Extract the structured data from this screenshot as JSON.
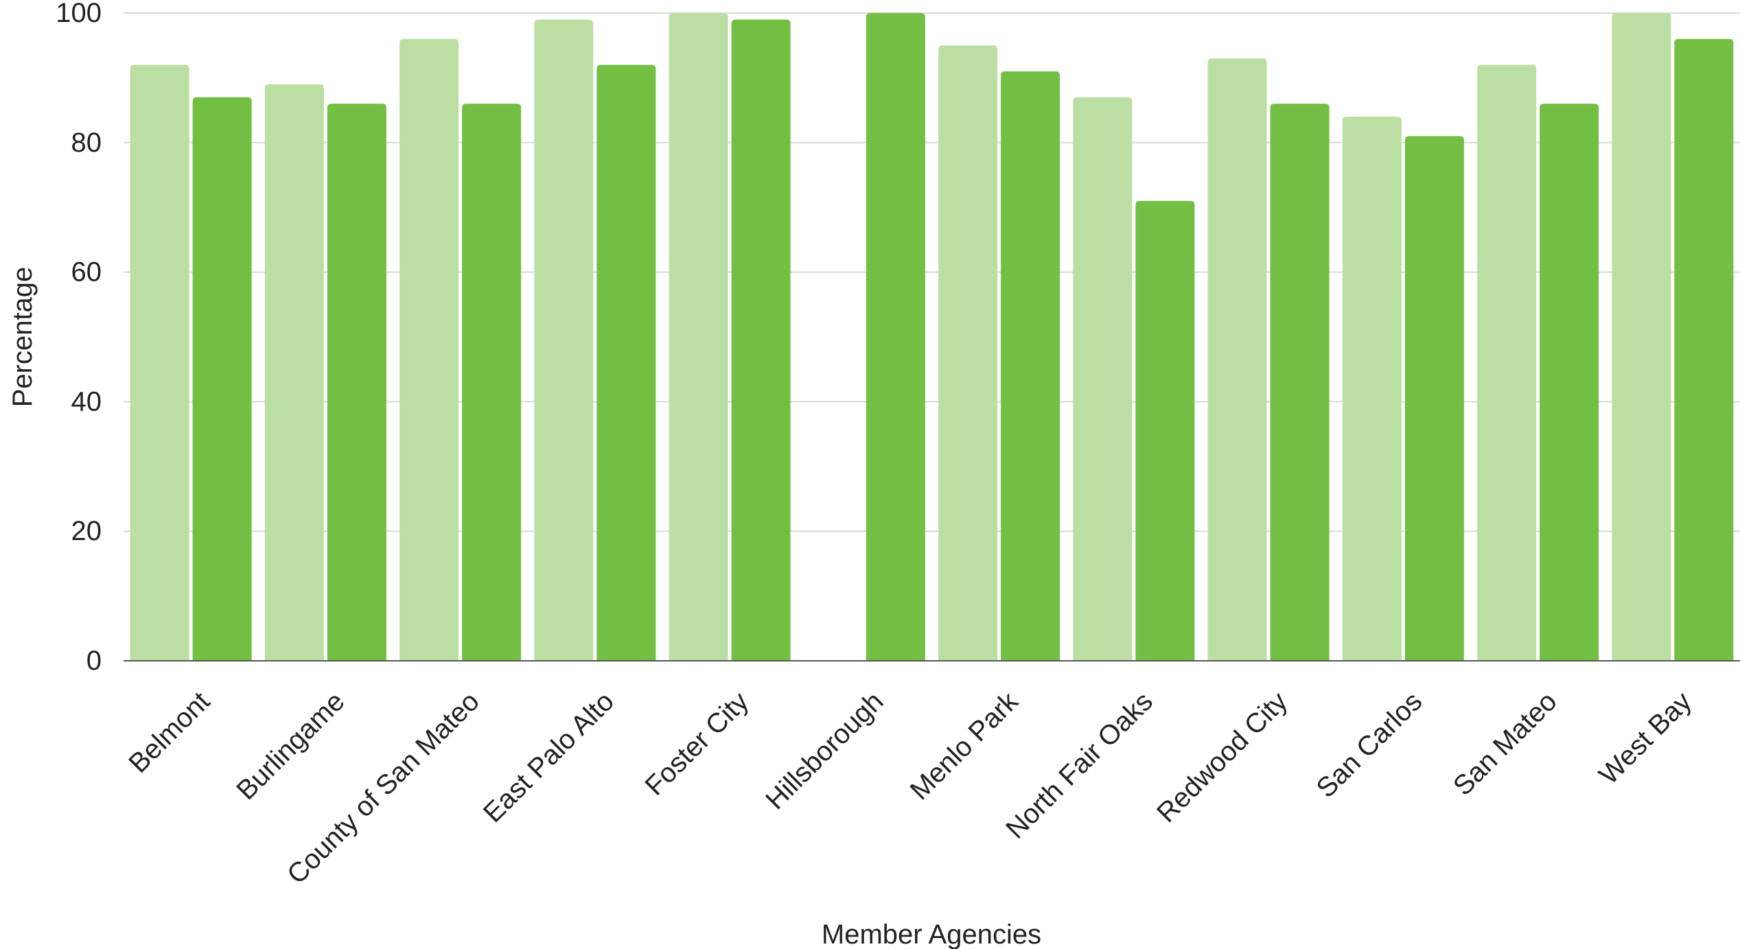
{
  "chart_data": {
    "type": "bar",
    "title": "",
    "xlabel": "Member Agencies",
    "ylabel": "Percentage",
    "ylim": [
      0,
      100
    ],
    "yticks": [
      0,
      20,
      40,
      60,
      80,
      100
    ],
    "grid": true,
    "legend": "none",
    "categories": [
      "Belmont",
      "Burlingame",
      "County of San Mateo",
      "East Palo Alto",
      "Foster City",
      "Hillsborough",
      "Menlo Park",
      "North Fair Oaks",
      "Redwood City",
      "San Carlos",
      "San Mateo",
      "West Bay"
    ],
    "series": [
      {
        "color": "#bbdfa2",
        "values": [
          92,
          89,
          96,
          99,
          100,
          0,
          95,
          87,
          93,
          84,
          92,
          100
        ]
      },
      {
        "color": "#72bf44",
        "values": [
          87,
          86,
          86,
          92,
          99,
          100,
          91,
          71,
          86,
          81,
          86,
          96
        ]
      }
    ],
    "colors": {
      "grid": "#d9d9d9",
      "axis": "#555555",
      "text": "#222222"
    }
  }
}
